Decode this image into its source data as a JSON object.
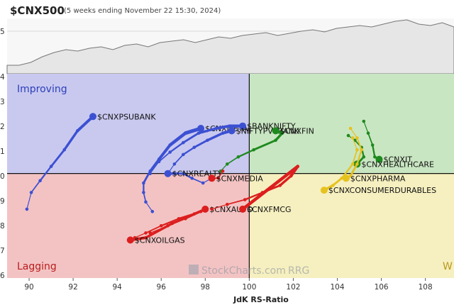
{
  "header": {
    "title": "$CNX500",
    "subtitle": "(5 weeks ending November 22 15:30, 2024)"
  },
  "quadrants": {
    "improving": "Improving",
    "lagging": "Lagging",
    "weakening": "W",
    "colors": {
      "improving": "#c9c9f0",
      "leading": "#c9e6c2",
      "lagging": "#f3c3c3",
      "weakening": "#f6efbf"
    }
  },
  "watermark": {
    "brand": "StockCharts.com",
    "rrg": "RRG"
  },
  "chart_data": {
    "type": "scatter",
    "xlabel": "JdK RS-Ratio",
    "xlim": [
      89,
      109.3
    ],
    "ylim": [
      95.6,
      104.2
    ],
    "x_ticks": [
      90,
      92,
      94,
      96,
      98,
      100,
      102,
      104,
      106,
      108
    ],
    "y_ticks": [
      "4",
      "3",
      "2",
      "1",
      "0",
      "9",
      "8",
      "7",
      "6"
    ],
    "center": [
      100,
      100
    ],
    "series": [
      {
        "name": "$CNXPSUBANK",
        "color": "#3c50d2",
        "points": [
          [
            89.9,
            98.5
          ],
          [
            90.1,
            99.2
          ],
          [
            90.5,
            99.7
          ],
          [
            91,
            100.3
          ],
          [
            91.6,
            101
          ],
          [
            92.2,
            101.8
          ],
          [
            92.9,
            102.4
          ]
        ]
      },
      {
        "name": "$CNXMETAL",
        "color": "#3c50d2",
        "points": [
          [
            95.6,
            98.4
          ],
          [
            95.3,
            98.8
          ],
          [
            95.2,
            99.2
          ],
          [
            95.2,
            99.6
          ],
          [
            95.5,
            100.1
          ],
          [
            95.9,
            100.6
          ],
          [
            96.4,
            101.2
          ],
          [
            97.1,
            101.7
          ],
          [
            97.8,
            101.9
          ]
        ]
      },
      {
        "name": "$BANKNIFTY",
        "color": "#3c50d2",
        "points": [
          [
            95.5,
            100
          ],
          [
            95.9,
            100.5
          ],
          [
            96.4,
            100.9
          ],
          [
            97,
            101.3
          ],
          [
            97.7,
            101.7
          ],
          [
            98.5,
            101.9
          ],
          [
            99.1,
            102
          ],
          [
            99.7,
            102
          ]
        ]
      },
      {
        "name": "$NIFTYPVTBANK",
        "color": "#3c50d2",
        "points": [
          [
            96.3,
            100
          ],
          [
            96.6,
            100.4
          ],
          [
            97,
            100.8
          ],
          [
            97.5,
            101.1
          ],
          [
            98.1,
            101.4
          ],
          [
            98.8,
            101.7
          ],
          [
            99.2,
            101.8
          ]
        ]
      },
      {
        "name": "$CNXREALTY",
        "color": "#3c50d2",
        "points": [
          [
            98.3,
            99.8
          ],
          [
            97.9,
            99.6
          ],
          [
            97.4,
            99.8
          ],
          [
            97,
            100
          ],
          [
            96.6,
            100
          ],
          [
            96.3,
            100
          ]
        ]
      },
      {
        "name": "$CNXFIN",
        "color": "#1e8a1e",
        "points": [
          [
            98.7,
            100.1
          ],
          [
            99,
            100.4
          ],
          [
            99.5,
            100.7
          ],
          [
            100.2,
            101
          ],
          [
            101.2,
            101.4
          ],
          [
            101.5,
            101.7
          ],
          [
            101.2,
            101.8
          ]
        ]
      },
      {
        "name": "$CNXMEDIA",
        "color": "#dc1e1e",
        "points": [
          [
            98.8,
            100.1
          ],
          [
            98.6,
            99.8
          ],
          [
            98.3,
            99.8
          ]
        ]
      },
      {
        "name": "$CNXAUTO",
        "color": "#dc1e1e",
        "points": [
          [
            94.8,
            97.3
          ],
          [
            95.3,
            97.5
          ],
          [
            96,
            97.8
          ],
          [
            96.8,
            98.1
          ],
          [
            97.5,
            98.3
          ],
          [
            98,
            98.5
          ]
        ]
      },
      {
        "name": "$CNXFMCG",
        "color": "#dc1e1e",
        "points": [
          [
            98.3,
            98.5
          ],
          [
            99,
            98.7
          ],
          [
            99.8,
            98.9
          ],
          [
            100.6,
            99.2
          ],
          [
            101.4,
            99.5
          ],
          [
            101.9,
            99.9
          ],
          [
            102.2,
            100.3
          ],
          [
            99.7,
            98.5
          ]
        ]
      },
      {
        "name": "$CNXOILGAS",
        "color": "#dc1e1e",
        "points": [
          [
            95.5,
            97.5
          ],
          [
            96.3,
            97.8
          ],
          [
            97.1,
            98.1
          ],
          [
            97.8,
            98.4
          ],
          [
            96.5,
            97.9
          ],
          [
            95.3,
            97.3
          ],
          [
            94.6,
            97.2
          ]
        ]
      },
      {
        "name": "$CNXIT",
        "color": "#1e8a1e",
        "points": [
          [
            105.2,
            102.2
          ],
          [
            105.4,
            101.7
          ],
          [
            105.6,
            101.2
          ],
          [
            105.7,
            100.7
          ],
          [
            105.9,
            100.6
          ]
        ]
      },
      {
        "name": "$CNXHEALTHCARE",
        "color": "#1e8a1e",
        "points": [
          [
            104.5,
            101.6
          ],
          [
            104.8,
            101.4
          ],
          [
            105.1,
            101.1
          ],
          [
            105.2,
            100.7
          ],
          [
            104.9,
            100.4
          ]
        ]
      },
      {
        "name": "$CNXPHARMA",
        "color": "#e6c21e",
        "points": [
          [
            104.6,
            101.9
          ],
          [
            104.9,
            101.5
          ],
          [
            105.1,
            101
          ],
          [
            104.9,
            100.4
          ],
          [
            104.6,
            99.9
          ],
          [
            104.4,
            99.8
          ]
        ]
      },
      {
        "name": "$CNXCONSUMERDURABLES",
        "color": "#e6c21e",
        "points": [
          [
            104.7,
            101.5
          ],
          [
            104.9,
            101
          ],
          [
            104.7,
            100.4
          ],
          [
            104.2,
            99.8
          ],
          [
            103.8,
            99.5
          ],
          [
            103.4,
            99.3
          ]
        ]
      }
    ]
  }
}
